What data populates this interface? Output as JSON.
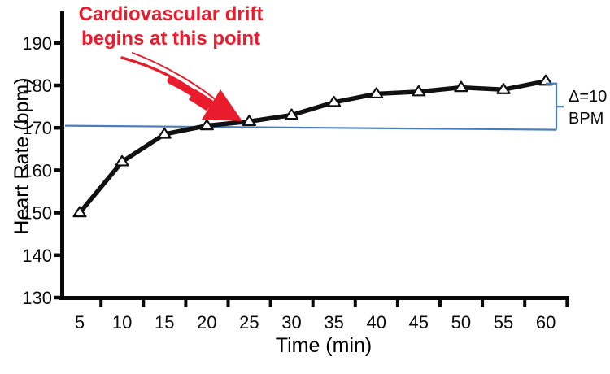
{
  "colors": {
    "annotation_red": "#e81c2c",
    "reference_blue": "#4a7ebb",
    "line_black": "#111111",
    "marker_fill": "#ffffff",
    "text": "#0a0a0a"
  },
  "annotation": {
    "line1": "Cardiovascular drift",
    "line2": "begins at this point"
  },
  "delta_label": {
    "line1": "Δ=10",
    "line2": "BPM"
  },
  "chart_data": {
    "type": "line",
    "title": "",
    "xlabel": "Time (min)",
    "ylabel": "Heart Rate (bpm)",
    "x": [
      5,
      10,
      15,
      20,
      25,
      30,
      35,
      40,
      45,
      50,
      55,
      60
    ],
    "series": [
      {
        "name": "Heart rate",
        "marker": "triangle-up-open",
        "values": [
          150,
          162,
          168.5,
          170.5,
          171.5,
          173,
          176,
          178,
          178.5,
          179.5,
          179,
          181
        ]
      }
    ],
    "ylim": [
      130,
      195
    ],
    "yticks": [
      190,
      180,
      170,
      160,
      150,
      140,
      130
    ],
    "grid": false,
    "legend": false,
    "reference_line": {
      "value": 170.5,
      "color": "#4a7ebb"
    },
    "delta_annotation": {
      "text": "Δ=10 BPM",
      "value": 10
    },
    "annotations": [
      {
        "text": "Cardiovascular drift begins at this point",
        "target_x_min": 25,
        "color": "#e81c2c"
      }
    ]
  }
}
